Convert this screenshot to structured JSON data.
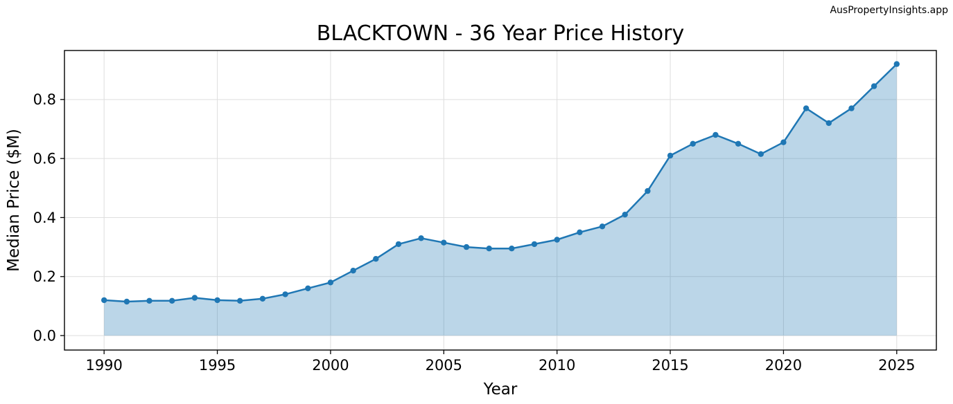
{
  "watermark": "AusPropertyInsights.app",
  "chart_data": {
    "type": "area",
    "title": "BLACKTOWN - 36 Year Price History",
    "xlabel": "Year",
    "ylabel": "Median Price ($M)",
    "x": [
      1990,
      1991,
      1992,
      1993,
      1994,
      1995,
      1996,
      1997,
      1998,
      1999,
      2000,
      2001,
      2002,
      2003,
      2004,
      2005,
      2006,
      2007,
      2008,
      2009,
      2010,
      2011,
      2012,
      2013,
      2014,
      2015,
      2016,
      2017,
      2018,
      2019,
      2020,
      2021,
      2022,
      2023,
      2024,
      2025
    ],
    "series": [
      {
        "name": "Median price",
        "values": [
          0.12,
          0.115,
          0.118,
          0.118,
          0.128,
          0.12,
          0.118,
          0.125,
          0.14,
          0.16,
          0.18,
          0.22,
          0.26,
          0.31,
          0.33,
          0.315,
          0.3,
          0.295,
          0.295,
          0.31,
          0.325,
          0.35,
          0.37,
          0.41,
          0.49,
          0.61,
          0.65,
          0.68,
          0.65,
          0.615,
          0.655,
          0.77,
          0.72,
          0.77,
          0.845,
          0.92
        ]
      }
    ],
    "xticks": [
      1990,
      1995,
      2000,
      2005,
      2010,
      2015,
      2020,
      2025
    ],
    "xtick_labels": [
      "1990",
      "1995",
      "2000",
      "2005",
      "2010",
      "2015",
      "2020",
      "2025"
    ],
    "yticks": [
      0.0,
      0.2,
      0.4,
      0.6,
      0.8
    ],
    "ytick_labels": [
      "0.0",
      "0.2",
      "0.4",
      "0.6",
      "0.8"
    ],
    "xlim": [
      1988.25,
      2026.75
    ],
    "ylim": [
      -0.049,
      0.966
    ],
    "grid": true,
    "legend": "none",
    "fill_baseline": 0.0,
    "colors": {
      "line": "#1f77b4",
      "marker": "#1f77b4",
      "fill": "rgba(31,119,180,0.3)",
      "grid": "#dedede",
      "spine": "#000000",
      "tick_text": "#000000",
      "title_text": "#000000",
      "watermark": "#c9c9c9"
    }
  }
}
